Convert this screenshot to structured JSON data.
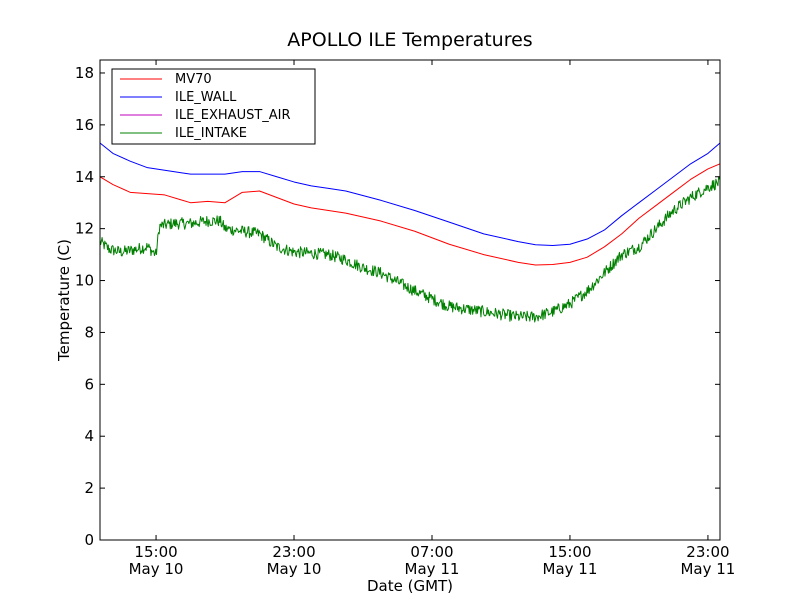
{
  "chart_data": {
    "type": "line",
    "title": "APOLLO ILE Temperatures",
    "xlabel": "Date (GMT)",
    "ylabel": "Temperature (C)",
    "xlim": [
      11.75,
      47.7
    ],
    "ylim": [
      0,
      18.5
    ],
    "yticks": [
      0,
      2,
      4,
      6,
      8,
      10,
      12,
      14,
      16,
      18
    ],
    "xticks": [
      {
        "hour": 15,
        "line1": "15:00",
        "line2": "May 10"
      },
      {
        "hour": 23,
        "line1": "23:00",
        "line2": "May 10"
      },
      {
        "hour": 31,
        "line1": "07:00",
        "line2": "May 11"
      },
      {
        "hour": 39,
        "line1": "15:00",
        "line2": "May 11"
      },
      {
        "hour": 47,
        "line1": "23:00",
        "line2": "May 11"
      }
    ],
    "x_units": "hours since May 10 00:00 GMT",
    "legend_position": "top-left",
    "series": [
      {
        "name": "MV70",
        "color": "#ff0000",
        "x": [
          11.75,
          12.5,
          13.5,
          14.5,
          15.5,
          16.5,
          17.0,
          18.0,
          19.0,
          20.0,
          21.0,
          22.0,
          23.0,
          24.0,
          25.0,
          26.0,
          28.0,
          30.0,
          32.0,
          34.0,
          36.0,
          37.0,
          38.0,
          39.0,
          40.0,
          41.0,
          42.0,
          43.0,
          44.0,
          45.0,
          46.0,
          47.0,
          47.7
        ],
        "y": [
          14.0,
          13.7,
          13.4,
          13.35,
          13.3,
          13.1,
          13.0,
          13.05,
          13.0,
          13.4,
          13.45,
          13.2,
          12.95,
          12.8,
          12.7,
          12.6,
          12.3,
          11.9,
          11.4,
          11.0,
          10.7,
          10.6,
          10.62,
          10.7,
          10.9,
          11.3,
          11.8,
          12.4,
          12.9,
          13.4,
          13.9,
          14.3,
          14.5
        ]
      },
      {
        "name": "ILE_WALL",
        "color": "#0000ff",
        "x": [
          11.75,
          12.5,
          13.5,
          14.5,
          15.5,
          16.5,
          17.0,
          18.0,
          19.0,
          20.0,
          21.0,
          22.0,
          23.0,
          24.0,
          25.0,
          26.0,
          28.0,
          30.0,
          32.0,
          34.0,
          36.0,
          37.0,
          38.0,
          39.0,
          40.0,
          41.0,
          42.0,
          43.0,
          44.0,
          45.0,
          46.0,
          47.0,
          47.7
        ],
        "y": [
          15.3,
          14.9,
          14.6,
          14.35,
          14.25,
          14.15,
          14.1,
          14.1,
          14.1,
          14.2,
          14.2,
          14.0,
          13.8,
          13.65,
          13.55,
          13.45,
          13.1,
          12.7,
          12.25,
          11.8,
          11.5,
          11.38,
          11.35,
          11.4,
          11.6,
          11.95,
          12.5,
          13.0,
          13.5,
          14.0,
          14.5,
          14.9,
          15.3
        ]
      },
      {
        "name": "ILE_EXHAUST_AIR",
        "color": "#bf00bf",
        "x": [],
        "y": []
      },
      {
        "name": "ILE_INTAKE",
        "color": "#008000",
        "noisy": true,
        "x": [
          11.75,
          12.3,
          13.0,
          13.8,
          14.5,
          15.0,
          15.2,
          16.0,
          17.0,
          18.0,
          18.7,
          19.0,
          20.0,
          21.0,
          22.0,
          23.0,
          24.0,
          25.0,
          26.0,
          27.0,
          28.0,
          30.0,
          32.0,
          34.0,
          36.0,
          37.0,
          38.0,
          39.0,
          40.0,
          41.0,
          42.0,
          43.0,
          44.0,
          45.0,
          46.0,
          47.0,
          47.7
        ],
        "y": [
          11.5,
          11.2,
          11.1,
          11.2,
          11.3,
          11.0,
          12.1,
          12.2,
          12.2,
          12.3,
          12.3,
          12.0,
          11.9,
          11.8,
          11.3,
          11.1,
          11.05,
          11.0,
          10.8,
          10.5,
          10.3,
          9.6,
          9.0,
          8.8,
          8.6,
          8.6,
          8.8,
          9.1,
          9.6,
          10.3,
          11.0,
          11.3,
          12.0,
          12.7,
          13.2,
          13.6,
          13.8
        ]
      }
    ]
  }
}
